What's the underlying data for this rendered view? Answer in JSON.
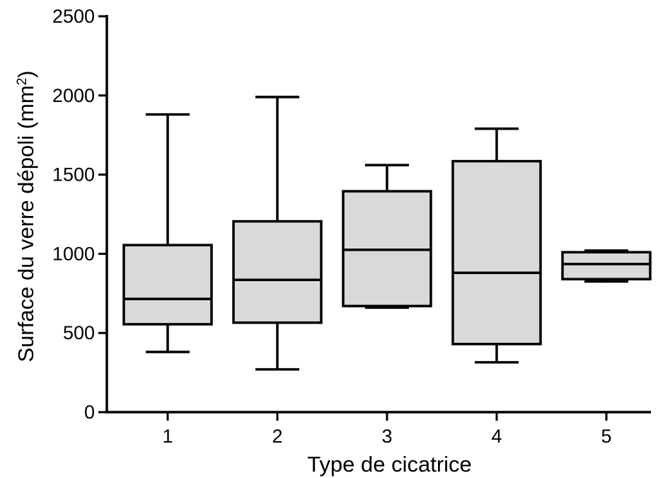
{
  "chart_data": {
    "type": "box",
    "categories": [
      "1",
      "2",
      "3",
      "4",
      "5"
    ],
    "boxes": [
      {
        "category": "1",
        "min": 380,
        "q1": 555,
        "median": 715,
        "q3": 1055,
        "max": 1880
      },
      {
        "category": "2",
        "min": 270,
        "q1": 565,
        "median": 835,
        "q3": 1205,
        "max": 1990
      },
      {
        "category": "3",
        "min": 660,
        "q1": 670,
        "median": 1025,
        "q3": 1395,
        "max": 1560
      },
      {
        "category": "4",
        "min": 315,
        "q1": 430,
        "median": 880,
        "q3": 1585,
        "max": 1790
      },
      {
        "category": "5",
        "min": 825,
        "q1": 840,
        "median": 935,
        "q3": 1010,
        "max": 1020
      }
    ],
    "xlabel": "Type de cicatrice",
    "ylabel": {
      "text": "Surface du verre dépoli (mm",
      "superscript": "2",
      "suffix": ")"
    },
    "ylim": [
      0,
      2500
    ],
    "yticks": [
      0,
      500,
      1000,
      1500,
      2000,
      2500
    ],
    "grid": false,
    "colors": {
      "box_fill": "#d9d9d9",
      "stroke": "#000000"
    }
  }
}
